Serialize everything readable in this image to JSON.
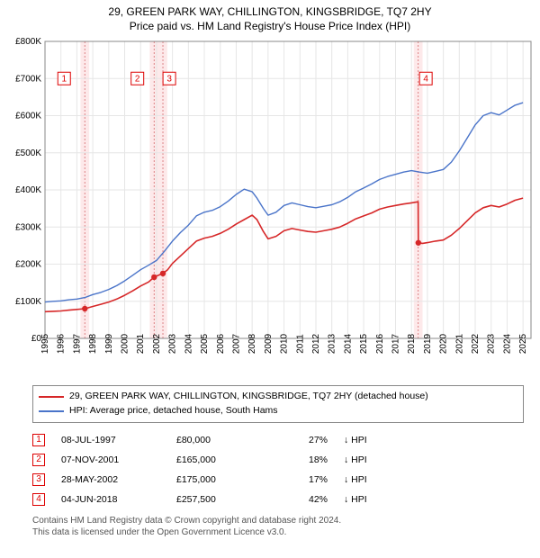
{
  "title_line1": "29, GREEN PARK WAY, CHILLINGTON, KINGSBRIDGE, TQ7 2HY",
  "title_line2": "Price paid vs. HM Land Registry's House Price Index (HPI)",
  "chart": {
    "type": "line",
    "background_color": "#ffffff",
    "plot_border_color": "#888888",
    "grid_color": "#e6e6e6",
    "y": {
      "min": 0,
      "max": 800000,
      "step": 100000,
      "labels": [
        "£0",
        "£100K",
        "£200K",
        "£300K",
        "£400K",
        "£500K",
        "£600K",
        "£700K",
        "£800K"
      ],
      "label_fontsize": 10
    },
    "x": {
      "min": 1995,
      "max": 2025.5,
      "tick_step": 1,
      "labels": [
        "1995",
        "1996",
        "1997",
        "1998",
        "1999",
        "2000",
        "2001",
        "2002",
        "2003",
        "2004",
        "2005",
        "2006",
        "2007",
        "2008",
        "2009",
        "2010",
        "2011",
        "2012",
        "2013",
        "2014",
        "2015",
        "2016",
        "2017",
        "2018",
        "2019",
        "2020",
        "2021",
        "2022",
        "2023",
        "2024",
        "2025"
      ],
      "label_fontsize": 10,
      "label_rotation": -90
    },
    "band_years": [
      1997.5,
      2001.85,
      2002.4,
      2018.42
    ],
    "band_fill": "#fde9ea",
    "band_dash_color": "#d9787b",
    "series": [
      {
        "key": "hpi",
        "label": "HPI: Average price, detached house, South Hams",
        "color": "#4a74c9",
        "line_width": 1.4,
        "points": [
          [
            1995.0,
            98000
          ],
          [
            1995.5,
            100000
          ],
          [
            1996.0,
            101000
          ],
          [
            1996.5,
            104000
          ],
          [
            1997.0,
            106000
          ],
          [
            1997.5,
            110000
          ],
          [
            1998.0,
            118000
          ],
          [
            1998.5,
            124000
          ],
          [
            1999.0,
            132000
          ],
          [
            1999.5,
            142000
          ],
          [
            2000.0,
            155000
          ],
          [
            2000.5,
            170000
          ],
          [
            2001.0,
            185000
          ],
          [
            2001.5,
            197000
          ],
          [
            2002.0,
            210000
          ],
          [
            2002.5,
            235000
          ],
          [
            2003.0,
            262000
          ],
          [
            2003.5,
            285000
          ],
          [
            2004.0,
            305000
          ],
          [
            2004.5,
            330000
          ],
          [
            2005.0,
            340000
          ],
          [
            2005.5,
            345000
          ],
          [
            2006.0,
            355000
          ],
          [
            2006.5,
            370000
          ],
          [
            2007.0,
            388000
          ],
          [
            2007.5,
            402000
          ],
          [
            2008.0,
            395000
          ],
          [
            2008.3,
            378000
          ],
          [
            2008.7,
            350000
          ],
          [
            2009.0,
            332000
          ],
          [
            2009.5,
            340000
          ],
          [
            2010.0,
            358000
          ],
          [
            2010.5,
            365000
          ],
          [
            2011.0,
            360000
          ],
          [
            2011.5,
            355000
          ],
          [
            2012.0,
            352000
          ],
          [
            2012.5,
            356000
          ],
          [
            2013.0,
            360000
          ],
          [
            2013.5,
            368000
          ],
          [
            2014.0,
            380000
          ],
          [
            2014.5,
            395000
          ],
          [
            2015.0,
            405000
          ],
          [
            2015.5,
            416000
          ],
          [
            2016.0,
            428000
          ],
          [
            2016.5,
            436000
          ],
          [
            2017.0,
            442000
          ],
          [
            2017.5,
            448000
          ],
          [
            2018.0,
            452000
          ],
          [
            2018.5,
            448000
          ],
          [
            2019.0,
            445000
          ],
          [
            2019.5,
            450000
          ],
          [
            2020.0,
            455000
          ],
          [
            2020.5,
            475000
          ],
          [
            2021.0,
            505000
          ],
          [
            2021.5,
            540000
          ],
          [
            2022.0,
            575000
          ],
          [
            2022.5,
            600000
          ],
          [
            2023.0,
            608000
          ],
          [
            2023.5,
            602000
          ],
          [
            2024.0,
            615000
          ],
          [
            2024.5,
            628000
          ],
          [
            2025.0,
            635000
          ]
        ]
      },
      {
        "key": "property",
        "label": "29, GREEN PARK WAY, CHILLINGTON, KINGSBRIDGE, TQ7 2HY (detached house)",
        "color": "#d62728",
        "line_width": 1.6,
        "points": [
          [
            1995.0,
            72000
          ],
          [
            1995.5,
            73000
          ],
          [
            1996.0,
            74000
          ],
          [
            1996.5,
            76000
          ],
          [
            1997.0,
            78000
          ],
          [
            1997.5,
            80000
          ],
          [
            1998.0,
            86000
          ],
          [
            1998.5,
            92000
          ],
          [
            1999.0,
            98000
          ],
          [
            1999.5,
            106000
          ],
          [
            2000.0,
            116000
          ],
          [
            2000.5,
            128000
          ],
          [
            2001.0,
            141000
          ],
          [
            2001.5,
            152000
          ],
          [
            2001.85,
            165000
          ],
          [
            2002.0,
            168000
          ],
          [
            2002.4,
            175000
          ],
          [
            2002.7,
            185000
          ],
          [
            2003.0,
            202000
          ],
          [
            2003.5,
            222000
          ],
          [
            2004.0,
            242000
          ],
          [
            2004.5,
            262000
          ],
          [
            2005.0,
            270000
          ],
          [
            2005.5,
            275000
          ],
          [
            2006.0,
            283000
          ],
          [
            2006.5,
            294000
          ],
          [
            2007.0,
            308000
          ],
          [
            2007.5,
            320000
          ],
          [
            2008.0,
            332000
          ],
          [
            2008.3,
            320000
          ],
          [
            2008.7,
            288000
          ],
          [
            2009.0,
            268000
          ],
          [
            2009.5,
            275000
          ],
          [
            2010.0,
            290000
          ],
          [
            2010.5,
            296000
          ],
          [
            2011.0,
            292000
          ],
          [
            2011.5,
            288000
          ],
          [
            2012.0,
            286000
          ],
          [
            2012.5,
            290000
          ],
          [
            2013.0,
            294000
          ],
          [
            2013.5,
            300000
          ],
          [
            2014.0,
            310000
          ],
          [
            2014.5,
            322000
          ],
          [
            2015.0,
            330000
          ],
          [
            2015.5,
            338000
          ],
          [
            2016.0,
            348000
          ],
          [
            2016.5,
            354000
          ],
          [
            2017.0,
            358000
          ],
          [
            2017.5,
            362000
          ],
          [
            2018.0,
            365000
          ],
          [
            2018.42,
            368000
          ],
          [
            2018.43,
            257500
          ],
          [
            2018.7,
            256000
          ],
          [
            2019.0,
            258000
          ],
          [
            2019.5,
            262000
          ],
          [
            2020.0,
            265000
          ],
          [
            2020.5,
            278000
          ],
          [
            2021.0,
            296000
          ],
          [
            2021.5,
            317000
          ],
          [
            2022.0,
            338000
          ],
          [
            2022.5,
            352000
          ],
          [
            2023.0,
            358000
          ],
          [
            2023.5,
            354000
          ],
          [
            2024.0,
            362000
          ],
          [
            2024.5,
            372000
          ],
          [
            2025.0,
            378000
          ]
        ]
      }
    ],
    "sale_dots": [
      {
        "year": 1997.5,
        "price": 80000,
        "color": "#d62728"
      },
      {
        "year": 2001.85,
        "price": 165000,
        "color": "#d62728"
      },
      {
        "year": 2002.4,
        "price": 175000,
        "color": "#d62728"
      },
      {
        "year": 2018.43,
        "price": 257500,
        "color": "#d62728"
      }
    ],
    "markers": [
      {
        "n": "1",
        "box_year": 1996.2,
        "box_price": 700000
      },
      {
        "n": "2",
        "box_year": 2000.8,
        "box_price": 700000
      },
      {
        "n": "3",
        "box_year": 2002.8,
        "box_price": 700000
      },
      {
        "n": "4",
        "box_year": 2018.9,
        "box_price": 700000
      }
    ],
    "marker_box": {
      "w": 14,
      "h": 14,
      "stroke": "#d62728",
      "fill": "#ffffff",
      "font_color": "#d62728"
    }
  },
  "legend_items": [
    {
      "key": "property",
      "color": "#d62728",
      "label": "29, GREEN PARK WAY, CHILLINGTON, KINGSBRIDGE, TQ7 2HY (detached house)"
    },
    {
      "key": "hpi",
      "color": "#4a74c9",
      "label": "HPI: Average price, detached house, South Hams"
    }
  ],
  "sales": [
    {
      "n": "1",
      "date": "08-JUL-1997",
      "price": "£80,000",
      "pct": "27%",
      "dir": "↓ HPI"
    },
    {
      "n": "2",
      "date": "07-NOV-2001",
      "price": "£165,000",
      "pct": "18%",
      "dir": "↓ HPI"
    },
    {
      "n": "3",
      "date": "28-MAY-2002",
      "price": "£175,000",
      "pct": "17%",
      "dir": "↓ HPI"
    },
    {
      "n": "4",
      "date": "04-JUN-2018",
      "price": "£257,500",
      "pct": "42%",
      "dir": "↓ HPI"
    }
  ],
  "footnote_line1": "Contains HM Land Registry data © Crown copyright and database right 2024.",
  "footnote_line2": "This data is licensed under the Open Government Licence v3.0."
}
